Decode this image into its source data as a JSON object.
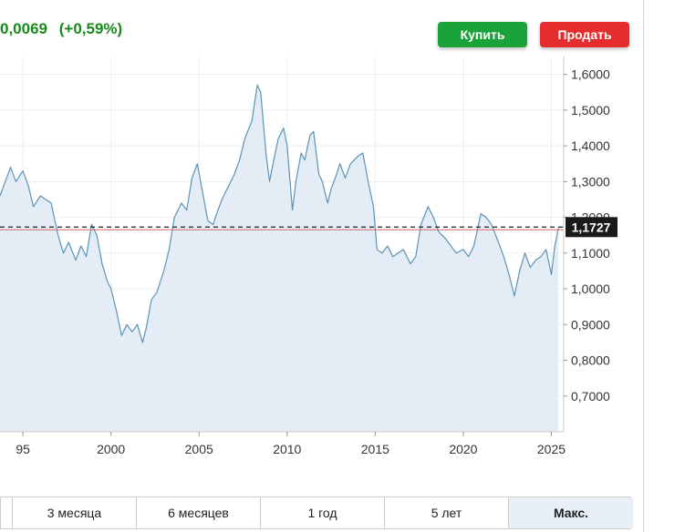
{
  "header": {
    "change_abs": "0,0069",
    "change_pct": "(+0,59%)"
  },
  "buttons": {
    "buy": "Купить",
    "sell": "Продать"
  },
  "tabs": [
    {
      "label": ""
    },
    {
      "label": "3 месяца"
    },
    {
      "label": "6 месяцев"
    },
    {
      "label": "1 год"
    },
    {
      "label": "5 лет"
    },
    {
      "label": "Макс.",
      "active": true
    }
  ],
  "colors": {
    "line": "#5b94b8",
    "fill": "#e4edf5",
    "positive": "#198a1c",
    "buy": "#1aa33b",
    "sell": "#e52d2d",
    "reference_line": "#e06666",
    "current_label_bg": "#1a1a1a"
  },
  "chart_data": {
    "type": "area",
    "current_value": 1.1727,
    "current_label": "1,1727",
    "reference_value": 1.165,
    "xlim": [
      1993.7,
      2025.7
    ],
    "ylim": [
      0.6,
      1.65
    ],
    "x_ticks": [
      "95",
      "2000",
      "2005",
      "2010",
      "2015",
      "2020",
      "2025"
    ],
    "x_tick_values": [
      1995,
      2000,
      2005,
      2010,
      2015,
      2020,
      2025
    ],
    "y_ticks": [
      "0,7000",
      "0,8000",
      "0,9000",
      "1,0000",
      "1,1000",
      "1,2000",
      "1,3000",
      "1,4000",
      "1,5000",
      "1,6000"
    ],
    "y_tick_values": [
      0.7,
      0.8,
      0.9,
      1.0,
      1.1,
      1.2,
      1.3,
      1.4,
      1.5,
      1.6
    ],
    "grid": true,
    "series": [
      {
        "x": [
          1993.7,
          1994.0,
          1994.3,
          1994.6,
          1995.0,
          1995.3,
          1995.6,
          1996.0,
          1996.3,
          1996.6,
          1997.0,
          1997.3,
          1997.6,
          1998.0,
          1998.3,
          1998.6,
          1998.9,
          1999.2,
          1999.5,
          1999.8,
          2000.0,
          2000.3,
          2000.6,
          2000.9,
          2001.2,
          2001.5,
          2001.8,
          2002.0,
          2002.3,
          2002.6,
          2003.0,
          2003.3,
          2003.6,
          2004.0,
          2004.3,
          2004.6,
          2004.9,
          2005.2,
          2005.5,
          2005.8,
          2006.0,
          2006.3,
          2006.6,
          2007.0,
          2007.3,
          2007.6,
          2008.0,
          2008.3,
          2008.5,
          2008.8,
          2009.0,
          2009.2,
          2009.5,
          2009.8,
          2010.0,
          2010.3,
          2010.5,
          2010.8,
          2011.0,
          2011.3,
          2011.5,
          2011.8,
          2012.0,
          2012.3,
          2012.5,
          2012.8,
          2013.0,
          2013.3,
          2013.6,
          2014.0,
          2014.3,
          2014.6,
          2014.9,
          2015.1,
          2015.4,
          2015.7,
          2016.0,
          2016.3,
          2016.6,
          2017.0,
          2017.3,
          2017.6,
          2018.0,
          2018.3,
          2018.6,
          2019.0,
          2019.3,
          2019.6,
          2020.0,
          2020.3,
          2020.6,
          2021.0,
          2021.3,
          2021.6,
          2022.0,
          2022.3,
          2022.6,
          2022.9,
          2023.2,
          2023.5,
          2023.8,
          2024.1,
          2024.4,
          2024.7,
          2025.0,
          2025.2,
          2025.4
        ],
        "y": [
          1.26,
          1.3,
          1.34,
          1.3,
          1.33,
          1.29,
          1.23,
          1.26,
          1.25,
          1.24,
          1.15,
          1.1,
          1.13,
          1.08,
          1.12,
          1.09,
          1.18,
          1.15,
          1.07,
          1.02,
          1.0,
          0.94,
          0.87,
          0.9,
          0.88,
          0.9,
          0.85,
          0.89,
          0.97,
          0.99,
          1.05,
          1.11,
          1.2,
          1.24,
          1.22,
          1.31,
          1.35,
          1.27,
          1.19,
          1.18,
          1.21,
          1.25,
          1.28,
          1.32,
          1.36,
          1.42,
          1.47,
          1.57,
          1.55,
          1.38,
          1.3,
          1.35,
          1.42,
          1.45,
          1.4,
          1.22,
          1.3,
          1.38,
          1.36,
          1.43,
          1.44,
          1.32,
          1.3,
          1.24,
          1.28,
          1.32,
          1.35,
          1.31,
          1.35,
          1.37,
          1.38,
          1.3,
          1.23,
          1.11,
          1.1,
          1.12,
          1.09,
          1.1,
          1.11,
          1.07,
          1.09,
          1.18,
          1.23,
          1.2,
          1.16,
          1.14,
          1.12,
          1.1,
          1.11,
          1.09,
          1.12,
          1.21,
          1.2,
          1.18,
          1.13,
          1.09,
          1.04,
          0.98,
          1.05,
          1.1,
          1.06,
          1.08,
          1.09,
          1.11,
          1.04,
          1.12,
          1.17
        ]
      }
    ]
  }
}
